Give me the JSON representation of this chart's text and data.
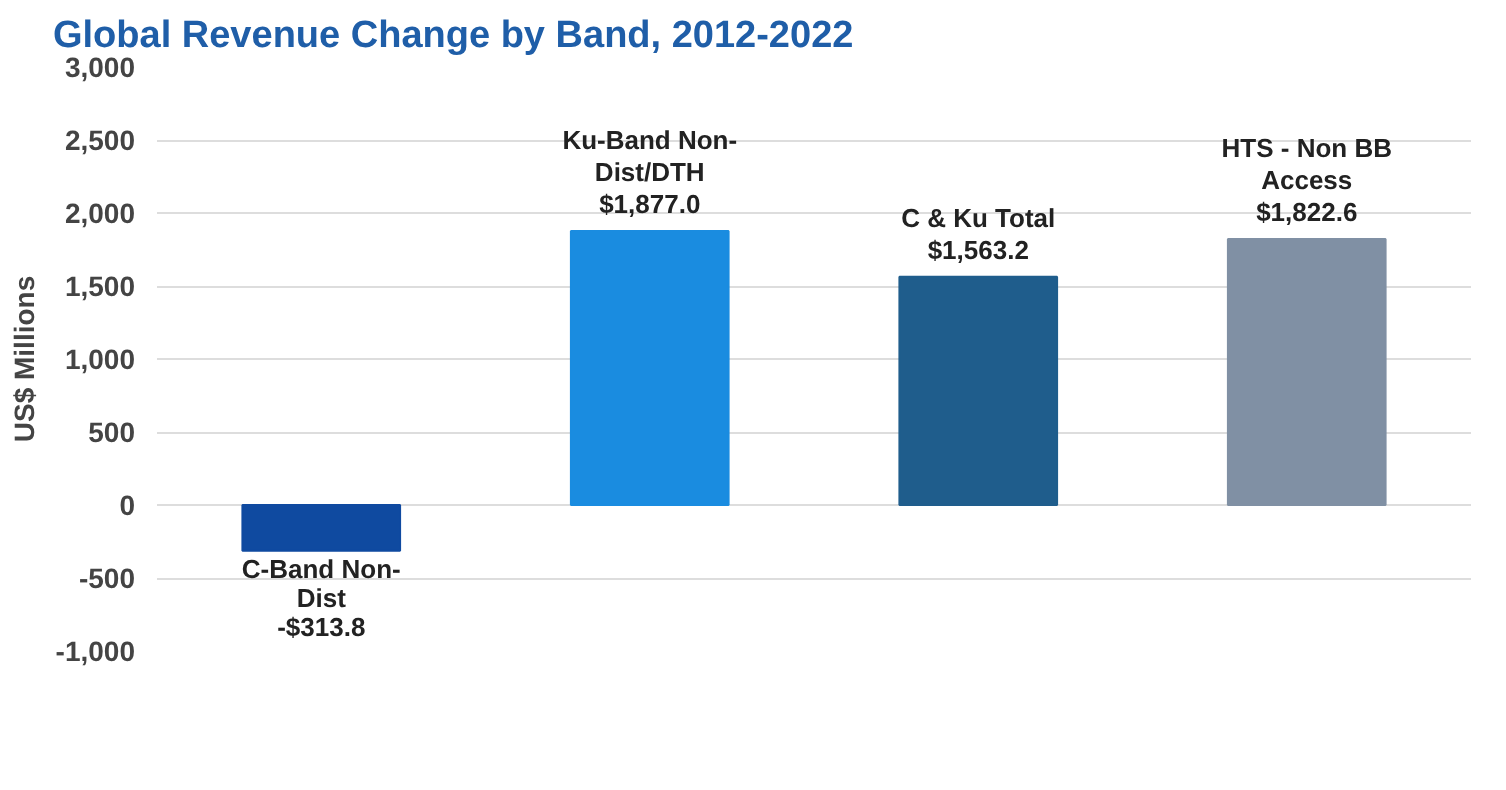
{
  "chart_data": {
    "type": "bar",
    "title": "Global Revenue Change by Band, 2012-2022",
    "ylabel": "US$ Millions",
    "categories": [
      "C-Band Non-Dist",
      "Ku-Band Non-Dist/DTH",
      "C & Ku Total",
      "HTS - Non BB Access"
    ],
    "values": [
      -313.8,
      1877.0,
      1563.2,
      1822.6
    ],
    "value_labels": [
      "-$313.8",
      "$1,877.0",
      "$1,563.2",
      "$1,822.6"
    ],
    "colors": [
      "#0f4aa0",
      "#1a8ce0",
      "#1f5d8c",
      "#8090a4"
    ],
    "ylim": [
      -1000,
      3000
    ],
    "yticks": [
      {
        "value": -1000,
        "label": "-1,000"
      },
      {
        "value": -500,
        "label": "-500"
      },
      {
        "value": 0,
        "label": "0"
      },
      {
        "value": 500,
        "label": "500"
      },
      {
        "value": 1000,
        "label": "1,000"
      },
      {
        "value": 1500,
        "label": "1,500"
      },
      {
        "value": 2000,
        "label": "2,000"
      },
      {
        "value": 2500,
        "label": "2,500"
      },
      {
        "value": 3000,
        "label": "3,000"
      }
    ],
    "grid": "y"
  }
}
